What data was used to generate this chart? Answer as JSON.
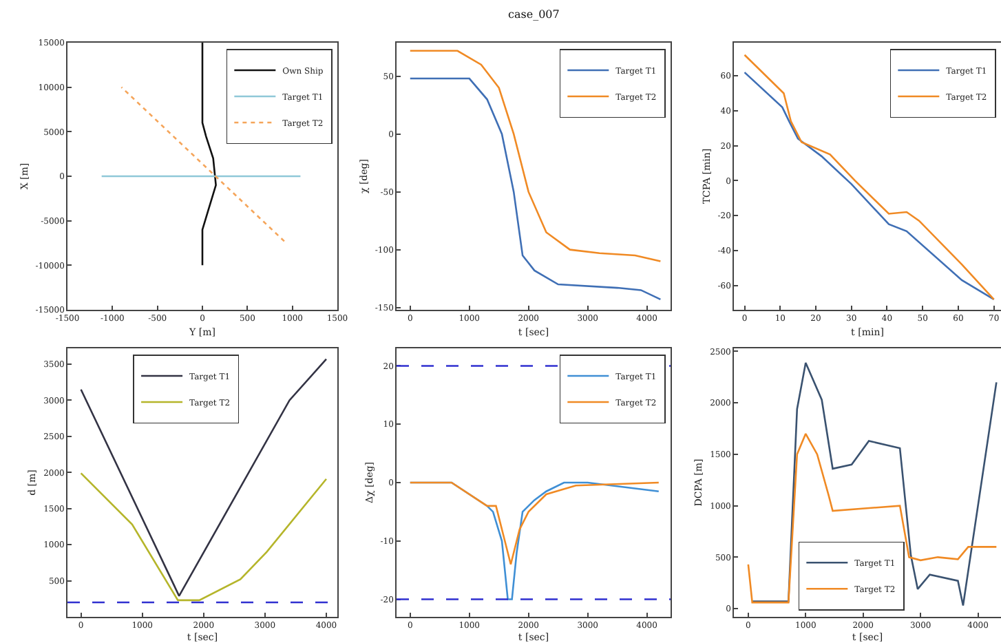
{
  "chart_data": [
    {
      "type": "line",
      "xlabel": "Y [m]",
      "ylabel": "X [m]",
      "xlim": [
        -1500,
        1500
      ],
      "ylim": [
        -15000,
        15000
      ],
      "xticks": [
        -1500,
        -1000,
        -500,
        0,
        500,
        1000,
        1500
      ],
      "yticks": [
        -15000,
        -10000,
        -5000,
        0,
        5000,
        10000,
        15000
      ],
      "legend": "top right",
      "series": [
        {
          "name": "Own Ship",
          "color": "#111111",
          "x": [
            0,
            0,
            0,
            60,
            150,
            120,
            40,
            0,
            0
          ],
          "values": [
            -10000,
            -8000,
            -6000,
            -4000,
            -1000,
            2000,
            4500,
            6000,
            15000
          ]
        },
        {
          "name": "Target T1",
          "color": "#8fc8d8",
          "x": [
            1090,
            -1120
          ],
          "values": [
            0,
            0
          ]
        },
        {
          "name": "Target T2",
          "color": "#f5a55a",
          "line_style": "dotted",
          "x": [
            910,
            -900
          ],
          "values": [
            -7300,
            10000
          ]
        }
      ]
    },
    {
      "type": "line",
      "title": "case_007",
      "xlabel": "t [sec]",
      "ylabel": "χ [deg]",
      "xlim": [
        -230,
        4400
      ],
      "ylim": [
        -152,
        79
      ],
      "xticks": [
        0,
        1000,
        2000,
        3000,
        4000
      ],
      "yticks": [
        -150,
        -100,
        -50,
        0,
        50
      ],
      "legend": "top right",
      "series": [
        {
          "name": "Target T1",
          "color": "#3f6fb5",
          "x": [
            0,
            1000,
            1300,
            1550,
            1750,
            1900,
            2100,
            2500,
            3500,
            3900,
            4230
          ],
          "values": [
            48,
            48,
            30,
            0,
            -50,
            -105,
            -118,
            -130,
            -133,
            -135,
            -143
          ]
        },
        {
          "name": "Target T2",
          "color": "#f08a24",
          "x": [
            0,
            800,
            1200,
            1500,
            1750,
            2000,
            2300,
            2700,
            3200,
            3800,
            4230
          ],
          "values": [
            72,
            72,
            60,
            40,
            0,
            -50,
            -85,
            -100,
            -103,
            -105,
            -110
          ]
        }
      ]
    },
    {
      "type": "line",
      "xlabel": "t [min]",
      "ylabel": "TCPA [min]",
      "xlim": [
        -3,
        72
      ],
      "ylim": [
        -74,
        79
      ],
      "xticks": [
        0,
        10,
        20,
        30,
        40,
        50,
        60,
        70
      ],
      "yticks": [
        -60,
        -40,
        -20,
        0,
        20,
        40,
        60
      ],
      "legend": "top right",
      "series": [
        {
          "name": "Target T1",
          "color": "#3f6fb5",
          "x": [
            0,
            10.6,
            12.5,
            15,
            21.6,
            30,
            40.5,
            45.5,
            61,
            70
          ],
          "values": [
            62,
            42,
            34,
            24,
            14,
            -2,
            -25,
            -29,
            -57,
            -68
          ]
        },
        {
          "name": "Target T2",
          "color": "#f08a24",
          "x": [
            0,
            11,
            13,
            16,
            24,
            31,
            40.5,
            45.5,
            49,
            61,
            70
          ],
          "values": [
            72,
            50,
            34,
            22,
            15,
            0,
            -19,
            -18,
            -23,
            -48,
            -68
          ]
        }
      ]
    },
    {
      "type": "line",
      "xlabel": "t [sec]",
      "ylabel": "d [m]",
      "xlim": [
        -220,
        4180
      ],
      "ylim": [
        0,
        3720
      ],
      "xticks": [
        0,
        1000,
        2000,
        3000,
        4000
      ],
      "yticks": [
        500,
        1000,
        1500,
        2000,
        2500,
        3000,
        3500
      ],
      "legend": "top",
      "ref_lines": [
        {
          "axis": "y",
          "value": 200,
          "color": "#3030d0",
          "line_style": "dashed"
        }
      ],
      "series": [
        {
          "name": "Target T1",
          "color": "#333344",
          "x": [
            0,
            1600,
            3400,
            4000
          ],
          "values": [
            3150,
            290,
            3000,
            3570
          ]
        },
        {
          "name": "Target T2",
          "color": "#b5b52a",
          "x": [
            0,
            835,
            1580,
            1930,
            2600,
            3030,
            4000
          ],
          "values": [
            1990,
            1280,
            230,
            230,
            520,
            900,
            1910
          ]
        }
      ]
    },
    {
      "type": "line",
      "xlabel": "t [sec]",
      "ylabel": "Δχ [deg]",
      "xlim": [
        -230,
        4400
      ],
      "ylim": [
        -23,
        23
      ],
      "xticks": [
        0,
        1000,
        2000,
        3000,
        4000
      ],
      "yticks": [
        -20,
        -10,
        0,
        10,
        20
      ],
      "legend": "top right",
      "ref_lines": [
        {
          "axis": "y",
          "value": 20,
          "color": "#3030d0",
          "line_style": "dashed"
        },
        {
          "axis": "y",
          "value": -20,
          "color": "#3030d0",
          "line_style": "dashed"
        }
      ],
      "series": [
        {
          "name": "Target T1",
          "color": "#3f8fd5",
          "x": [
            0,
            700,
            1300,
            1400,
            1550,
            1650,
            1720,
            1800,
            1900,
            2100,
            2300,
            2600,
            3000,
            4200
          ],
          "values": [
            0,
            0,
            -4,
            -5,
            -10,
            -20,
            -20,
            -12,
            -5,
            -3,
            -1.5,
            0,
            0,
            -1.5
          ]
        },
        {
          "name": "Target T2",
          "color": "#f08a24",
          "x": [
            0,
            700,
            1300,
            1450,
            1600,
            1700,
            1850,
            2000,
            2300,
            2800,
            4200
          ],
          "values": [
            0,
            0,
            -4,
            -4,
            -10,
            -14,
            -8,
            -5,
            -2,
            -0.5,
            0
          ]
        }
      ]
    },
    {
      "type": "line",
      "xlabel": "t [sec]",
      "ylabel": "DCPA [m]",
      "xlim": [
        -250,
        4400
      ],
      "ylim": [
        -80,
        2530
      ],
      "xticks": [
        0,
        1000,
        2000,
        3000,
        4000
      ],
      "yticks": [
        0,
        500,
        1000,
        1500,
        2000,
        2500
      ],
      "legend": "bottom",
      "series": [
        {
          "name": "Target T1",
          "color": "#3a5270",
          "x": [
            70,
            700,
            850,
            1000,
            1280,
            1470,
            1800,
            2100,
            2640,
            2830,
            2950,
            3160,
            3650,
            3740,
            4320
          ],
          "values": [
            70,
            70,
            1940,
            2390,
            2030,
            1360,
            1400,
            1630,
            1560,
            520,
            190,
            330,
            270,
            30,
            2200
          ]
        },
        {
          "name": "Target T2",
          "color": "#f08a24",
          "x": [
            0,
            70,
            700,
            850,
            1000,
            1200,
            1400,
            1470,
            2640,
            2800,
            3000,
            3300,
            3650,
            3830,
            4320
          ],
          "values": [
            430,
            60,
            60,
            1500,
            1700,
            1500,
            1100,
            950,
            1000,
            500,
            470,
            500,
            480,
            600,
            600
          ]
        }
      ]
    }
  ]
}
